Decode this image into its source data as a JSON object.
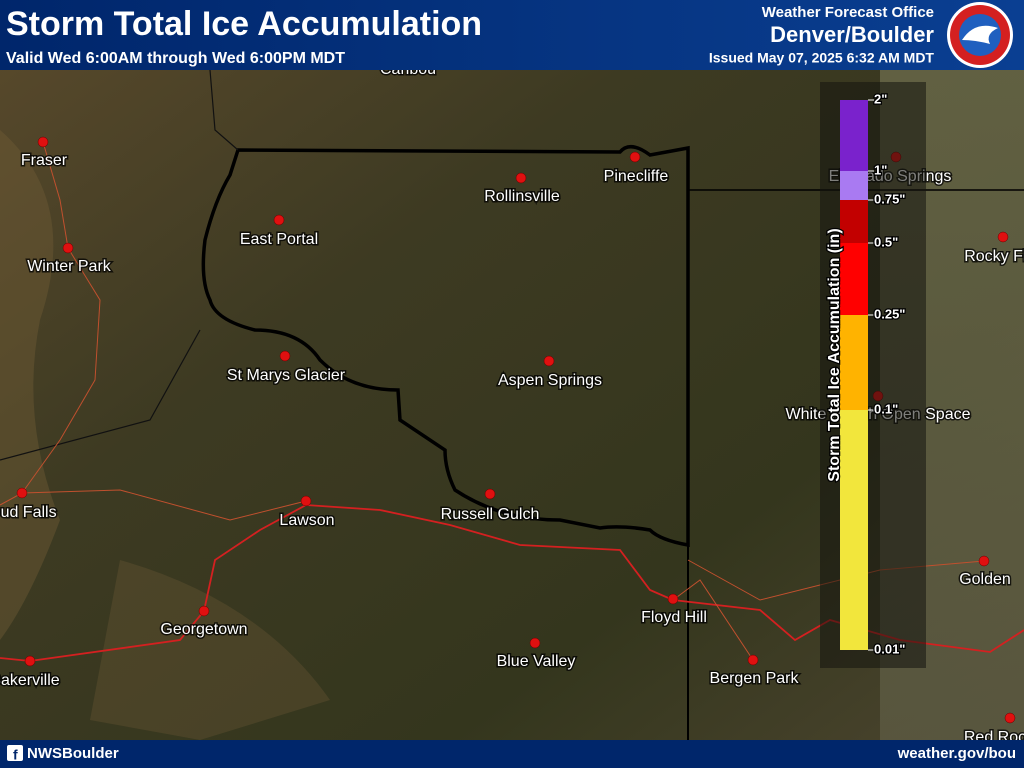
{
  "header": {
    "title": "Storm Total Ice Accumulation",
    "subtitle": "Valid Wed 6:00AM through Wed 6:00PM MDT",
    "office": "Weather Forecast Office",
    "location": "Denver/Boulder",
    "issued": "Issued May 07, 2025 6:32 AM MDT"
  },
  "legend": {
    "title": "Storm Total Ice Accumulation (in)",
    "labels": [
      "2\"",
      "1\"",
      "0.75\"",
      "0.5\"",
      "0.25\"",
      "0.1\"",
      "0.01\""
    ],
    "colors": [
      "#7a22cc",
      "#a97af2",
      "#c20000",
      "#ff0000",
      "#ffb300",
      "#f2e63c"
    ]
  },
  "places": [
    "Caribou",
    "Fraser",
    "Winter Park",
    "East Portal",
    "Rollinsville",
    "Pinecliffe",
    "Eldorado Springs",
    "Rocky Flats",
    "St Marys Glacier",
    "Aspen Springs",
    "White Ranch Open Space",
    "Berthoud Falls",
    "Lawson",
    "Russell Gulch",
    "Georgetown",
    "Floyd Hill",
    "Golden",
    "Blue Valley",
    "Bergen Park",
    "Bakerville",
    "Red Rocks"
  ],
  "footer": {
    "social": "NWSBoulder",
    "url": "weather.gov/bou"
  }
}
